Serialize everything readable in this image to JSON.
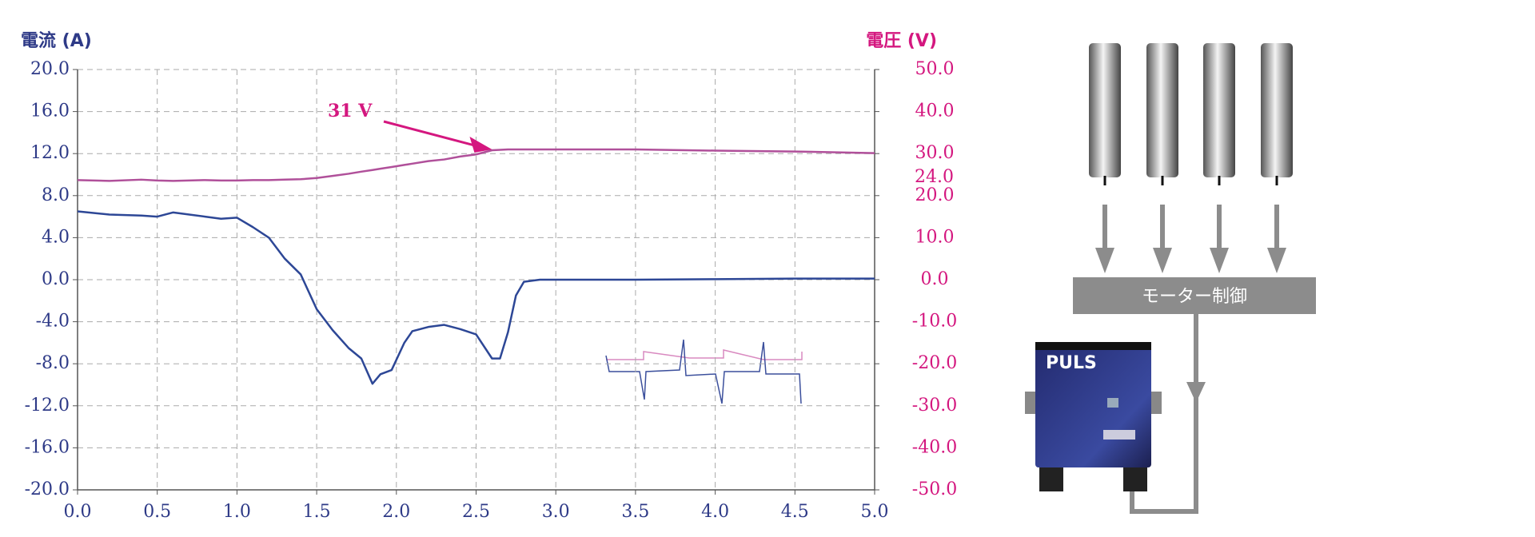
{
  "chart_data": {
    "type": "line",
    "y_label": "電流 (A)",
    "y2_label": "電圧 (V)",
    "x": [
      0,
      0.2,
      0.4,
      0.5,
      0.6,
      0.8,
      0.9,
      1.0,
      1.1,
      1.2,
      1.3,
      1.4,
      1.5,
      1.6,
      1.7,
      1.78,
      1.85,
      1.9,
      1.97,
      2.05,
      2.1,
      2.2,
      2.3,
      2.4,
      2.5,
      2.6,
      2.65,
      2.7,
      2.75,
      2.8,
      2.9,
      3.5,
      4.0,
      4.5,
      5.0
    ],
    "series": [
      {
        "name": "電流",
        "color": "#2d4796",
        "values": [
          6.5,
          6.2,
          6.1,
          6.0,
          6.4,
          6.0,
          5.8,
          5.9,
          5.0,
          4.0,
          2.0,
          0.5,
          -2.8,
          -4.8,
          -6.5,
          -7.5,
          -9.9,
          -9.0,
          -8.6,
          -6.0,
          -4.9,
          -4.5,
          -4.3,
          -4.7,
          -5.2,
          -7.5,
          -7.5,
          -5.0,
          -1.5,
          -0.2,
          0.0,
          0.0,
          0.05,
          0.1,
          0.1
        ]
      },
      {
        "name": "電圧",
        "color": "#b0509a",
        "axis": "y2",
        "values": [
          23.7,
          23.5,
          23.8,
          23.6,
          23.5,
          23.7,
          23.6,
          23.6,
          23.7,
          23.7,
          23.8,
          23.9,
          24.2,
          24.7,
          25.2,
          25.7,
          26.1,
          26.4,
          26.8,
          27.3,
          27.6,
          28.2,
          28.6,
          29.3,
          29.8,
          30.8,
          30.9,
          31.0,
          31.0,
          31.0,
          31.0,
          31.0,
          30.7,
          30.5,
          30.1
        ]
      }
    ],
    "xlim": [
      0,
      5
    ],
    "ylim": [
      -20,
      20
    ],
    "y2lim": [
      -50,
      50
    ],
    "xticks": [
      {
        "value": 0,
        "label": "0.0"
      },
      {
        "value": 0.5,
        "label": "0.5"
      },
      {
        "value": 1,
        "label": "1.0"
      },
      {
        "value": 1.5,
        "label": "1.5"
      },
      {
        "value": 2,
        "label": "2.0"
      },
      {
        "value": 2.5,
        "label": "2.5"
      },
      {
        "value": 3,
        "label": "3.0"
      },
      {
        "value": 3.5,
        "label": "3.5"
      },
      {
        "value": 4,
        "label": "4.0"
      },
      {
        "value": 4.5,
        "label": "4.5"
      },
      {
        "value": 5,
        "label": "5.0"
      }
    ],
    "yticks": [
      {
        "value": 20,
        "label": "20.0"
      },
      {
        "value": 16,
        "label": "16.0"
      },
      {
        "value": 12,
        "label": "12.0"
      },
      {
        "value": 8,
        "label": "8.0"
      },
      {
        "value": 4,
        "label": "4.0"
      },
      {
        "value": 0,
        "label": "0.0"
      },
      {
        "value": -4,
        "label": "-4.0"
      },
      {
        "value": -8,
        "label": "-8.0"
      },
      {
        "value": -12,
        "label": "-12.0"
      },
      {
        "value": -16,
        "label": "-16.0"
      },
      {
        "value": -20,
        "label": "-20.0"
      }
    ],
    "y2ticks": [
      {
        "value": 50,
        "label": "50.0"
      },
      {
        "value": 40,
        "label": "40.0"
      },
      {
        "value": 30,
        "label": "30.0"
      },
      {
        "value": 20,
        "label": "20.0"
      },
      {
        "value": 10,
        "label": "10.0"
      },
      {
        "value": 0,
        "label": "0.0"
      },
      {
        "value": -10,
        "label": "-10.0"
      },
      {
        "value": -20,
        "label": "-20.0"
      },
      {
        "value": -30,
        "label": "-30.0"
      },
      {
        "value": -40,
        "label": "-40.0"
      },
      {
        "value": -50,
        "label": "-50.0"
      }
    ],
    "y2_marker": {
      "value": 24,
      "label": "24.0"
    },
    "annotation": {
      "text": "31 V",
      "x": 2.6,
      "y": 31
    },
    "grid": true
  },
  "diagram": {
    "controller": "モーター制御",
    "device": "PULS"
  }
}
